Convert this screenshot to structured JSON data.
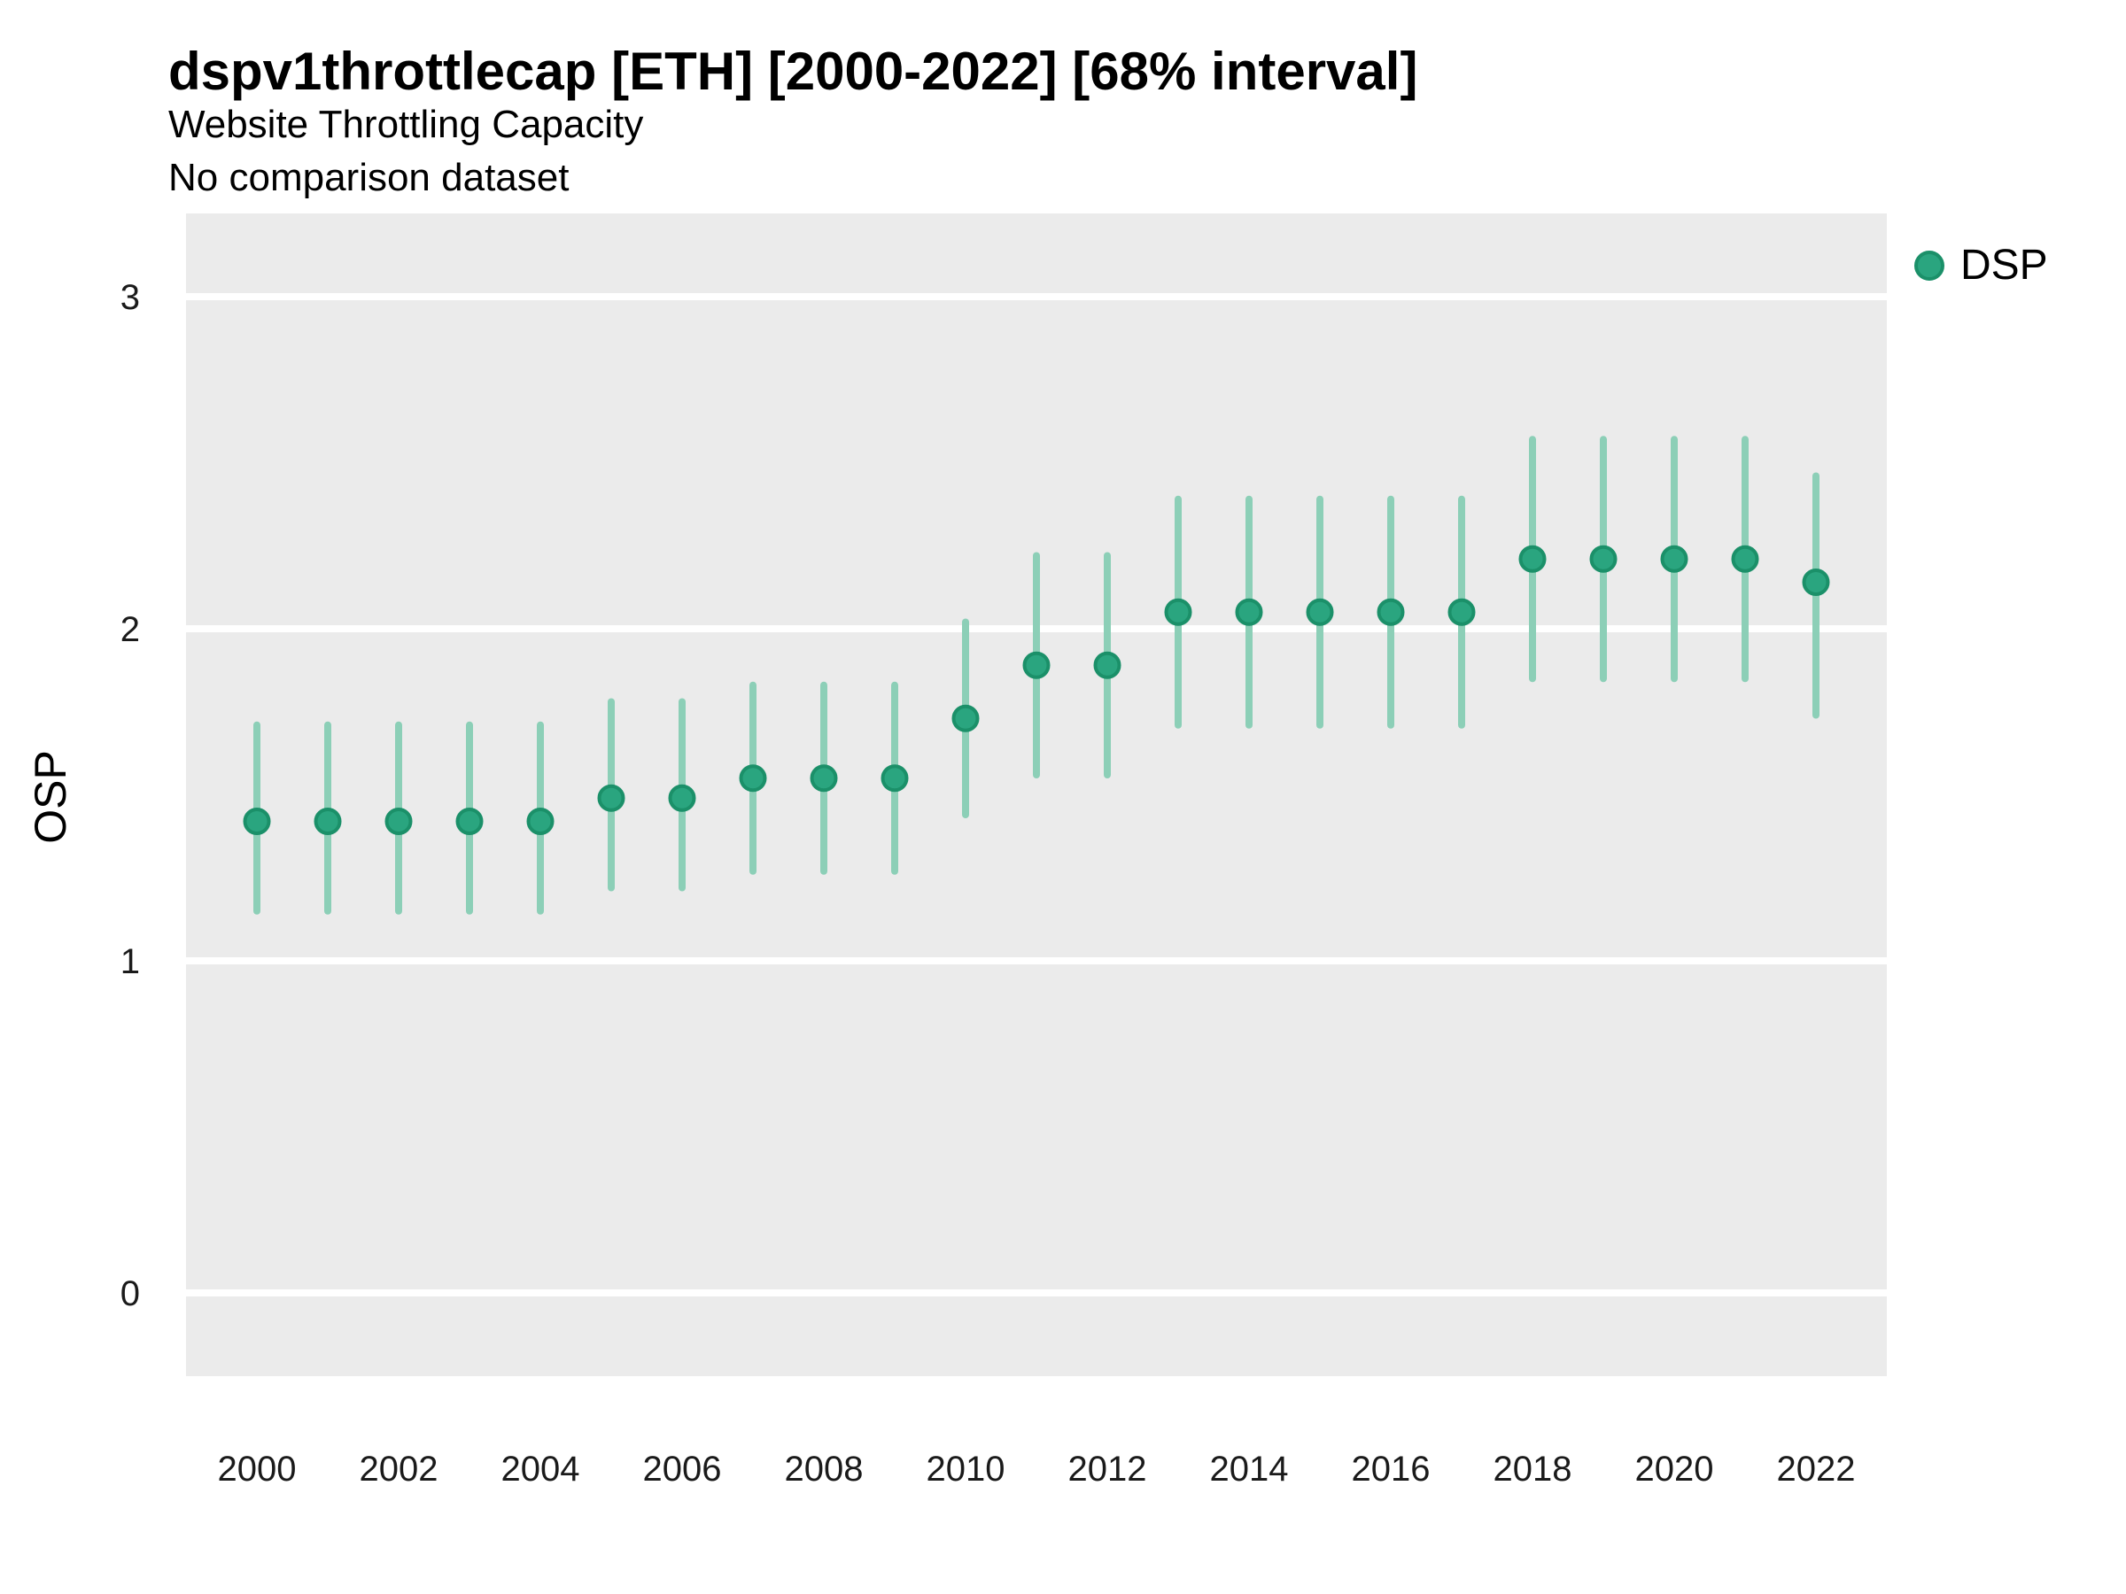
{
  "chart_data": {
    "type": "pointrange",
    "title": "dspv1throttlecap [ETH] [2000-2022] [68% interval]",
    "subtitle": "Website Throttling Capacity",
    "subtitle2": "No comparison dataset",
    "xlabel": "",
    "ylabel": "OSP",
    "interval_note": "68% interval",
    "legend": {
      "label": "DSP",
      "position": "right-top"
    },
    "grid": "horizontal-major-only",
    "x_domain": [
      2000,
      2022
    ],
    "ylim": [
      -0.25,
      3.25
    ],
    "x_ticks": [
      2000,
      2002,
      2004,
      2006,
      2008,
      2010,
      2012,
      2014,
      2016,
      2018,
      2020,
      2022
    ],
    "y_ticks": [
      0,
      1,
      2,
      3
    ],
    "series": [
      {
        "name": "DSP",
        "points": [
          {
            "x": 2000,
            "y": 1.42,
            "lo": 1.15,
            "hi": 1.71
          },
          {
            "x": 2001,
            "y": 1.42,
            "lo": 1.15,
            "hi": 1.71
          },
          {
            "x": 2002,
            "y": 1.42,
            "lo": 1.15,
            "hi": 1.71
          },
          {
            "x": 2003,
            "y": 1.42,
            "lo": 1.15,
            "hi": 1.71
          },
          {
            "x": 2004,
            "y": 1.42,
            "lo": 1.15,
            "hi": 1.71
          },
          {
            "x": 2005,
            "y": 1.49,
            "lo": 1.22,
            "hi": 1.78
          },
          {
            "x": 2006,
            "y": 1.49,
            "lo": 1.22,
            "hi": 1.78
          },
          {
            "x": 2007,
            "y": 1.55,
            "lo": 1.27,
            "hi": 1.83
          },
          {
            "x": 2008,
            "y": 1.55,
            "lo": 1.27,
            "hi": 1.83
          },
          {
            "x": 2009,
            "y": 1.55,
            "lo": 1.27,
            "hi": 1.83
          },
          {
            "x": 2010,
            "y": 1.73,
            "lo": 1.44,
            "hi": 2.02
          },
          {
            "x": 2011,
            "y": 1.89,
            "lo": 1.56,
            "hi": 2.22
          },
          {
            "x": 2012,
            "y": 1.89,
            "lo": 1.56,
            "hi": 2.22
          },
          {
            "x": 2013,
            "y": 2.05,
            "lo": 1.71,
            "hi": 2.39
          },
          {
            "x": 2014,
            "y": 2.05,
            "lo": 1.71,
            "hi": 2.39
          },
          {
            "x": 2015,
            "y": 2.05,
            "lo": 1.71,
            "hi": 2.39
          },
          {
            "x": 2016,
            "y": 2.05,
            "lo": 1.71,
            "hi": 2.39
          },
          {
            "x": 2017,
            "y": 2.05,
            "lo": 1.71,
            "hi": 2.39
          },
          {
            "x": 2018,
            "y": 2.21,
            "lo": 1.85,
            "hi": 2.57
          },
          {
            "x": 2019,
            "y": 2.21,
            "lo": 1.85,
            "hi": 2.57
          },
          {
            "x": 2020,
            "y": 2.21,
            "lo": 1.85,
            "hi": 2.57
          },
          {
            "x": 2021,
            "y": 2.21,
            "lo": 1.85,
            "hi": 2.57
          },
          {
            "x": 2022,
            "y": 2.14,
            "lo": 1.74,
            "hi": 2.46
          }
        ]
      }
    ],
    "colors": {
      "point_fill": "#2AA57F",
      "point_stroke": "#1B9069",
      "interval_line": "#8CCFB7",
      "panel_bg": "#EBEBEB",
      "gridline": "#FFFFFF",
      "title_text": "#000000",
      "tick_text": "#1A1A1A"
    }
  }
}
